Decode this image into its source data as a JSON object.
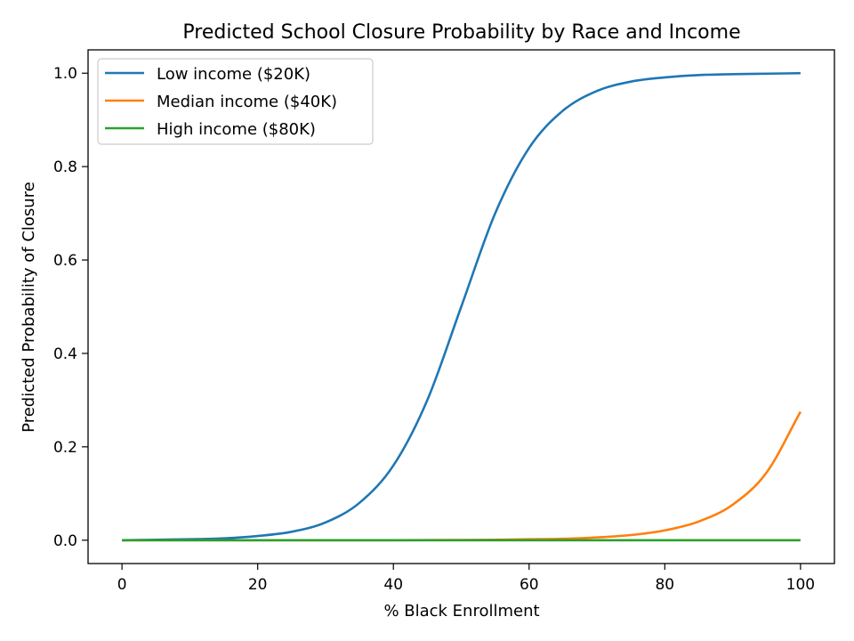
{
  "chart_data": {
    "type": "line",
    "title": "Predicted School Closure Probability by Race and Income",
    "xlabel": "% Black Enrollment",
    "ylabel": "Predicted Probability of Closure",
    "xlim": [
      -5,
      105
    ],
    "ylim": [
      -0.05,
      1.05
    ],
    "xticks": [
      0,
      20,
      40,
      60,
      80,
      100
    ],
    "xtick_labels": [
      "0",
      "20",
      "40",
      "60",
      "80",
      "100"
    ],
    "yticks": [
      0.0,
      0.2,
      0.4,
      0.6,
      0.8,
      1.0
    ],
    "ytick_labels": [
      "0.0",
      "0.2",
      "0.4",
      "0.6",
      "0.8",
      "1.0"
    ],
    "grid": false,
    "legend_position": "upper-left",
    "series": [
      {
        "name": "Low income ($20K)",
        "color": "#1f77b4",
        "x": [
          0,
          5,
          10,
          15,
          20,
          25,
          30,
          35,
          40,
          45,
          50,
          55,
          60,
          65,
          70,
          75,
          80,
          85,
          90,
          95,
          100
        ],
        "y": [
          0.0,
          0.001,
          0.002,
          0.004,
          0.009,
          0.018,
          0.038,
          0.08,
          0.16,
          0.3,
          0.5,
          0.7,
          0.84,
          0.92,
          0.962,
          0.982,
          0.991,
          0.996,
          0.998,
          0.999,
          1.0
        ]
      },
      {
        "name": "Median income ($40K)",
        "color": "#ff7f0e",
        "x": [
          0,
          10,
          20,
          30,
          40,
          50,
          55,
          60,
          65,
          70,
          75,
          80,
          85,
          90,
          95,
          100
        ],
        "y": [
          0.0,
          0.0,
          0.0,
          0.0,
          0.0,
          0.0005,
          0.001,
          0.002,
          0.003,
          0.006,
          0.011,
          0.021,
          0.04,
          0.076,
          0.145,
          0.275
        ]
      },
      {
        "name": "High income ($80K)",
        "color": "#2ca02c",
        "x": [
          0,
          100
        ],
        "y": [
          0.0,
          0.0
        ]
      }
    ]
  }
}
